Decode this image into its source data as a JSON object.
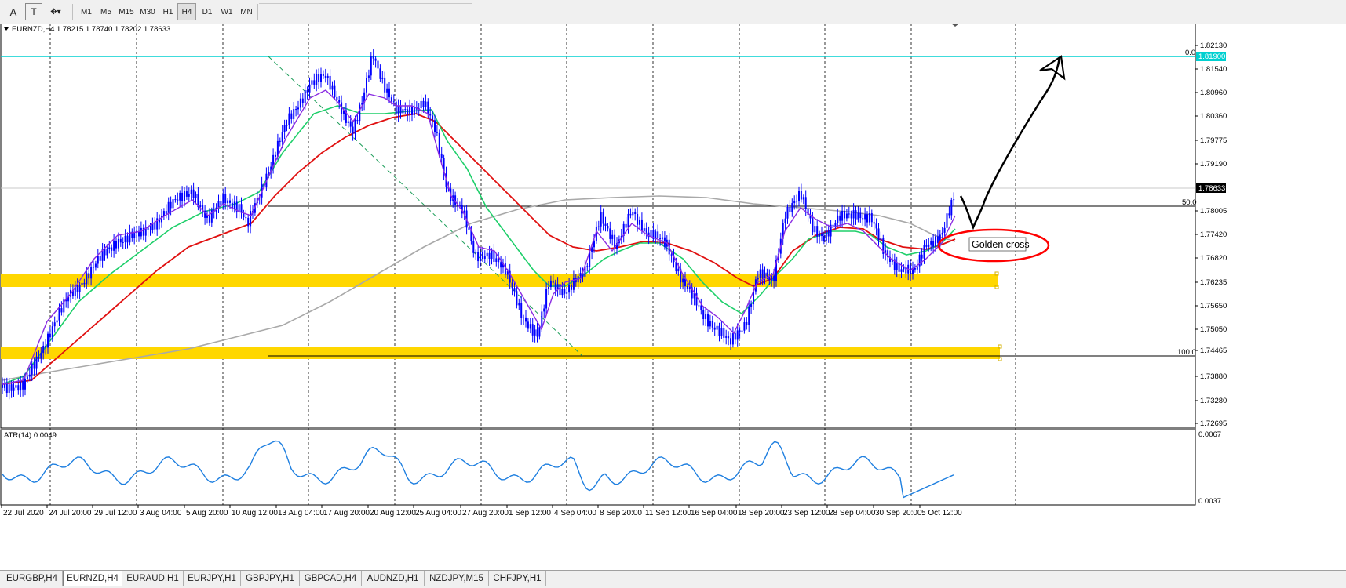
{
  "toolbar": {
    "tools": [
      "A",
      "T"
    ],
    "periods": [
      "M1",
      "M5",
      "M15",
      "M30",
      "H1",
      "H4",
      "D1",
      "W1",
      "MN"
    ],
    "active_period": "H4"
  },
  "chart": {
    "header": "EURNZD,H4  1.78215 1.78740 1.78202 1.78633",
    "current_price": "1.78633",
    "level_price": "1.81900",
    "fib_labels": [
      "0.0",
      "50.0",
      "100.0"
    ],
    "y_ticks": [
      "1.82130",
      "1.81540",
      "1.80960",
      "1.80360",
      "1.79775",
      "1.79190",
      "1.78005",
      "1.77420",
      "1.76820",
      "1.76235",
      "1.75650",
      "1.75050",
      "1.74465",
      "1.73880",
      "1.73280",
      "1.72695"
    ],
    "x_ticks": [
      "22 Jul 2020",
      "24 Jul 20:00",
      "29 Jul 12:00",
      "3 Aug 04:00",
      "5 Aug 20:00",
      "10 Aug 12:00",
      "13 Aug 04:00",
      "17 Aug 20:00",
      "20 Aug 12:00",
      "25 Aug 04:00",
      "27 Aug 20:00",
      "1 Sep 12:00",
      "4 Sep 04:00",
      "8 Sep 20:00",
      "11 Sep 12:00",
      "16 Sep 04:00",
      "18 Sep 20:00",
      "23 Sep 12:00",
      "28 Sep 04:00",
      "30 Sep 20:00",
      "5 Oct 12:00"
    ],
    "annotation": "Golden cross",
    "colors": {
      "fast_ma": "#8a2be2",
      "mid_ma": "#1ecf6a",
      "slow_ma": "#e01010",
      "long_ma": "#a9a9a9",
      "level": "#00d0d0",
      "zone": "#ffd700",
      "candle": "#0000ff",
      "atr": "#1e90ff"
    }
  },
  "indicator": {
    "label": "ATR(14) 0.0049",
    "y_ticks": [
      "0.0067",
      "0.0037"
    ]
  },
  "tabs": [
    "EURGBP,H4",
    "EURNZD,H4",
    "EURAUD,H1",
    "EURJPY,H1",
    "GBPJPY,H1",
    "GBPCAD,H4",
    "AUDNZD,H1",
    "NZDJPY,M15",
    "CHFJPY,H1"
  ],
  "active_tab": "EURNZD,H4"
}
